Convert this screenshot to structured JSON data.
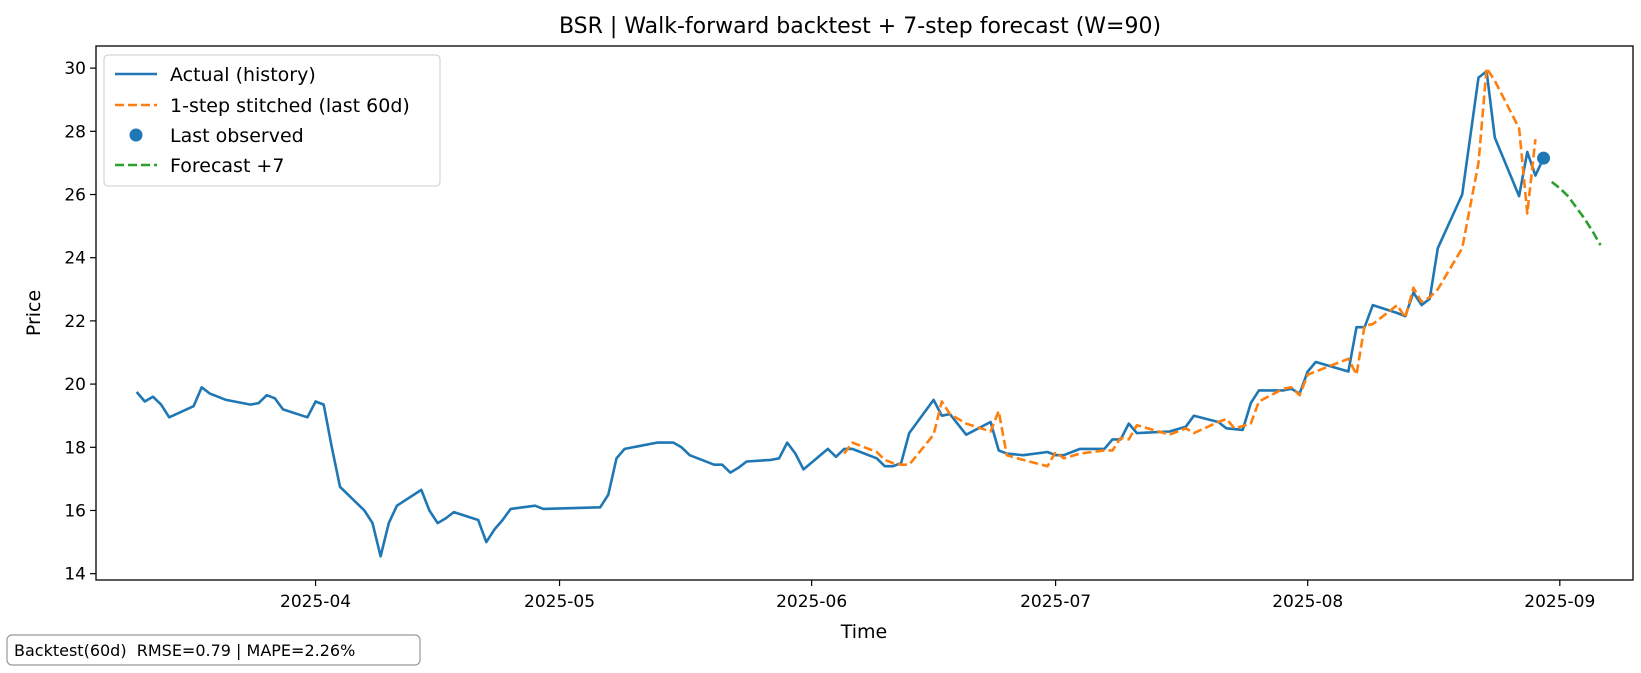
{
  "chart_data": {
    "type": "line",
    "title": "BSR | Walk-forward backtest + 7-step forecast (W=90)",
    "xlabel": "Time",
    "ylabel": "Price",
    "xlim": [
      "2025-03-05",
      "2025-09-10"
    ],
    "ylim": [
      13.8,
      30.7
    ],
    "x_ticks": [
      "2025-04",
      "2025-05",
      "2025-06",
      "2025-07",
      "2025-08",
      "2025-09"
    ],
    "y_ticks": [
      14,
      16,
      18,
      20,
      22,
      24,
      26,
      28,
      30
    ],
    "grid": false,
    "legend_position": "top-left",
    "colors": {
      "actual": "#1f77b4",
      "stitched": "#ff7f0e",
      "last": "#1f77b4",
      "forecast": "#2ca02c"
    },
    "series": [
      {
        "name": "Actual (history)",
        "style": "solid",
        "points": [
          [
            "2025-03-10",
            19.75
          ],
          [
            "2025-03-11",
            19.45
          ],
          [
            "2025-03-12",
            19.6
          ],
          [
            "2025-03-13",
            19.35
          ],
          [
            "2025-03-14",
            18.95
          ],
          [
            "2025-03-17",
            19.3
          ],
          [
            "2025-03-18",
            19.9
          ],
          [
            "2025-03-19",
            19.7
          ],
          [
            "2025-03-21",
            19.5
          ],
          [
            "2025-03-24",
            19.35
          ],
          [
            "2025-03-25",
            19.4
          ],
          [
            "2025-03-26",
            19.65
          ],
          [
            "2025-03-27",
            19.55
          ],
          [
            "2025-03-28",
            19.2
          ],
          [
            "2025-03-31",
            18.95
          ],
          [
            "2025-04-01",
            19.45
          ],
          [
            "2025-04-02",
            19.35
          ],
          [
            "2025-04-03",
            18.0
          ],
          [
            "2025-04-04",
            16.75
          ],
          [
            "2025-04-07",
            16.0
          ],
          [
            "2025-04-08",
            15.6
          ],
          [
            "2025-04-09",
            14.55
          ],
          [
            "2025-04-10",
            15.6
          ],
          [
            "2025-04-11",
            16.15
          ],
          [
            "2025-04-14",
            16.65
          ],
          [
            "2025-04-15",
            16.0
          ],
          [
            "2025-04-16",
            15.6
          ],
          [
            "2025-04-17",
            15.75
          ],
          [
            "2025-04-18",
            15.95
          ],
          [
            "2025-04-21",
            15.7
          ],
          [
            "2025-04-22",
            15.0
          ],
          [
            "2025-04-23",
            15.4
          ],
          [
            "2025-04-24",
            15.7
          ],
          [
            "2025-04-25",
            16.05
          ],
          [
            "2025-04-28",
            16.15
          ],
          [
            "2025-04-29",
            16.05
          ],
          [
            "2025-05-06",
            16.1
          ],
          [
            "2025-05-07",
            16.5
          ],
          [
            "2025-05-08",
            17.65
          ],
          [
            "2025-05-09",
            17.95
          ],
          [
            "2025-05-13",
            18.15
          ],
          [
            "2025-05-15",
            18.15
          ],
          [
            "2025-05-16",
            18.0
          ],
          [
            "2025-05-17",
            17.75
          ],
          [
            "2025-05-20",
            17.45
          ],
          [
            "2025-05-21",
            17.45
          ],
          [
            "2025-05-22",
            17.2
          ],
          [
            "2025-05-23",
            17.35
          ],
          [
            "2025-05-24",
            17.55
          ],
          [
            "2025-05-27",
            17.6
          ],
          [
            "2025-05-28",
            17.65
          ],
          [
            "2025-05-29",
            18.15
          ],
          [
            "2025-05-30",
            17.8
          ],
          [
            "2025-05-31",
            17.3
          ],
          [
            "2025-06-03",
            17.95
          ],
          [
            "2025-06-04",
            17.7
          ],
          [
            "2025-06-05",
            17.95
          ],
          [
            "2025-06-06",
            17.95
          ],
          [
            "2025-06-09",
            17.65
          ],
          [
            "2025-06-10",
            17.4
          ],
          [
            "2025-06-11",
            17.4
          ],
          [
            "2025-06-12",
            17.5
          ],
          [
            "2025-06-13",
            18.45
          ],
          [
            "2025-06-16",
            19.5
          ],
          [
            "2025-06-17",
            19.0
          ],
          [
            "2025-06-18",
            19.05
          ],
          [
            "2025-06-20",
            18.4
          ],
          [
            "2025-06-23",
            18.8
          ],
          [
            "2025-06-24",
            17.9
          ],
          [
            "2025-06-25",
            17.8
          ],
          [
            "2025-06-27",
            17.75
          ],
          [
            "2025-06-30",
            17.85
          ],
          [
            "2025-07-01",
            17.75
          ],
          [
            "2025-07-02",
            17.75
          ],
          [
            "2025-07-04",
            17.95
          ],
          [
            "2025-07-07",
            17.95
          ],
          [
            "2025-07-08",
            18.25
          ],
          [
            "2025-07-09",
            18.25
          ],
          [
            "2025-07-10",
            18.75
          ],
          [
            "2025-07-11",
            18.45
          ],
          [
            "2025-07-15",
            18.5
          ],
          [
            "2025-07-17",
            18.65
          ],
          [
            "2025-07-18",
            19.0
          ],
          [
            "2025-07-21",
            18.8
          ],
          [
            "2025-07-22",
            18.6
          ],
          [
            "2025-07-24",
            18.55
          ],
          [
            "2025-07-25",
            19.4
          ],
          [
            "2025-07-26",
            19.8
          ],
          [
            "2025-07-29",
            19.8
          ],
          [
            "2025-07-30",
            19.85
          ],
          [
            "2025-07-31",
            19.7
          ],
          [
            "2025-08-01",
            20.4
          ],
          [
            "2025-08-02",
            20.7
          ],
          [
            "2025-08-06",
            20.4
          ],
          [
            "2025-08-07",
            21.8
          ],
          [
            "2025-08-08",
            21.8
          ],
          [
            "2025-08-09",
            22.5
          ],
          [
            "2025-08-12",
            22.25
          ],
          [
            "2025-08-13",
            22.15
          ],
          [
            "2025-08-14",
            22.9
          ],
          [
            "2025-08-15",
            22.5
          ],
          [
            "2025-08-16",
            22.7
          ],
          [
            "2025-08-17",
            24.3
          ],
          [
            "2025-08-20",
            26.0
          ],
          [
            "2025-08-22",
            29.7
          ],
          [
            "2025-08-23",
            29.9
          ],
          [
            "2025-08-24",
            27.8
          ],
          [
            "2025-08-27",
            25.95
          ],
          [
            "2025-08-28",
            27.35
          ],
          [
            "2025-08-29",
            26.6
          ],
          [
            "2025-08-30",
            27.15
          ]
        ]
      },
      {
        "name": "1-step stitched (last 60d)",
        "style": "dashed",
        "points": [
          [
            "2025-06-05",
            17.8
          ],
          [
            "2025-06-06",
            18.15
          ],
          [
            "2025-06-09",
            17.85
          ],
          [
            "2025-06-10",
            17.6
          ],
          [
            "2025-06-11",
            17.5
          ],
          [
            "2025-06-12",
            17.45
          ],
          [
            "2025-06-13",
            17.45
          ],
          [
            "2025-06-16",
            18.4
          ],
          [
            "2025-06-17",
            19.45
          ],
          [
            "2025-06-18",
            19.05
          ],
          [
            "2025-06-20",
            18.75
          ],
          [
            "2025-06-23",
            18.5
          ],
          [
            "2025-06-24",
            19.15
          ],
          [
            "2025-06-25",
            17.75
          ],
          [
            "2025-06-27",
            17.6
          ],
          [
            "2025-06-30",
            17.4
          ],
          [
            "2025-07-01",
            17.85
          ],
          [
            "2025-07-02",
            17.65
          ],
          [
            "2025-07-04",
            17.8
          ],
          [
            "2025-07-07",
            17.9
          ],
          [
            "2025-07-08",
            17.9
          ],
          [
            "2025-07-09",
            18.3
          ],
          [
            "2025-07-10",
            18.25
          ],
          [
            "2025-07-11",
            18.7
          ],
          [
            "2025-07-15",
            18.4
          ],
          [
            "2025-07-17",
            18.6
          ],
          [
            "2025-07-18",
            18.45
          ],
          [
            "2025-07-21",
            18.8
          ],
          [
            "2025-07-22",
            18.9
          ],
          [
            "2025-07-23",
            18.6
          ],
          [
            "2025-07-25",
            18.75
          ],
          [
            "2025-07-26",
            19.45
          ],
          [
            "2025-07-29",
            19.85
          ],
          [
            "2025-07-30",
            19.9
          ],
          [
            "2025-07-31",
            19.65
          ],
          [
            "2025-08-01",
            20.3
          ],
          [
            "2025-08-02",
            20.4
          ],
          [
            "2025-08-06",
            20.8
          ],
          [
            "2025-08-07",
            20.3
          ],
          [
            "2025-08-08",
            21.85
          ],
          [
            "2025-08-09",
            21.9
          ],
          [
            "2025-08-12",
            22.5
          ],
          [
            "2025-08-13",
            22.1
          ],
          [
            "2025-08-14",
            23.05
          ],
          [
            "2025-08-15",
            22.6
          ],
          [
            "2025-08-16",
            22.75
          ],
          [
            "2025-08-17",
            23.0
          ],
          [
            "2025-08-20",
            24.3
          ],
          [
            "2025-08-22",
            27.0
          ],
          [
            "2025-08-23",
            30.0
          ],
          [
            "2025-08-24",
            29.6
          ],
          [
            "2025-08-27",
            28.1
          ],
          [
            "2025-08-28",
            25.4
          ],
          [
            "2025-08-29",
            27.75
          ]
        ]
      },
      {
        "name": "Last observed",
        "style": "marker",
        "points": [
          [
            "2025-08-30",
            27.15
          ]
        ]
      },
      {
        "name": "Forecast +7",
        "style": "dashed",
        "points": [
          [
            "2025-08-31",
            26.4
          ],
          [
            "2025-09-01",
            26.2
          ],
          [
            "2025-09-02",
            25.95
          ],
          [
            "2025-09-03",
            25.6
          ],
          [
            "2025-09-04",
            25.25
          ],
          [
            "2025-09-05",
            24.85
          ],
          [
            "2025-09-06",
            24.4
          ]
        ]
      }
    ],
    "annotation": "Backtest(60d)  RMSE=0.79 | MAPE=2.26%"
  }
}
